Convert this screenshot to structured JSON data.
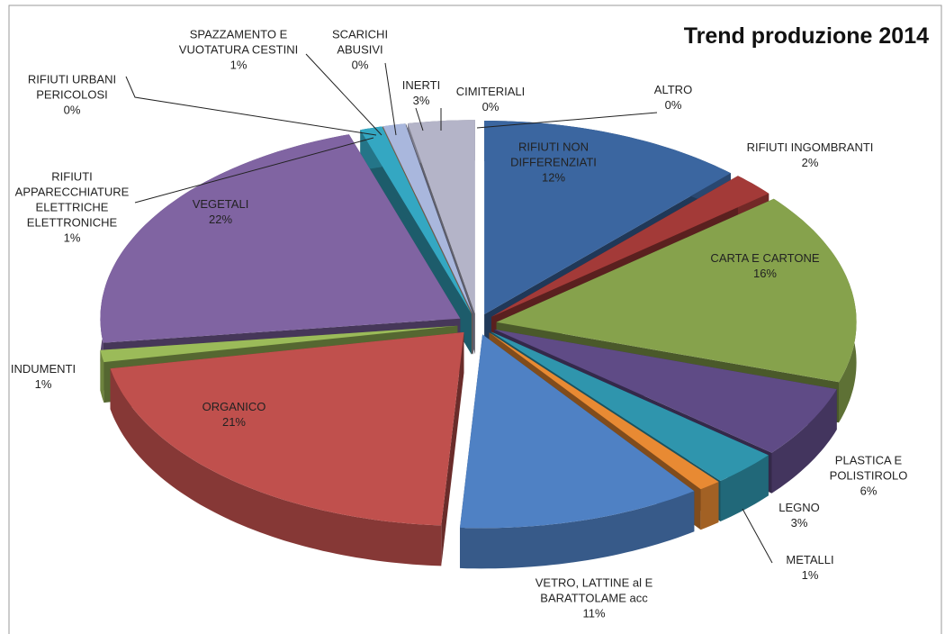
{
  "chart_data": {
    "type": "pie",
    "title": "Trend produzione 2014",
    "categories": [
      "RIFIUTI NON\nDIFFERENZIATI",
      "RIFIUTI INGOMBRANTI",
      "CARTA E CARTONE",
      "PLASTICA E\nPOLISTIROLO",
      "LEGNO",
      "METALLI",
      "VETRO, LATTINE al E\nBARATTOLAME acc",
      "ORGANICO",
      "INDUMENTI",
      "VEGETALI",
      "RIFIUTI\nAPPARECCHIATURE\nELETTRICHE\nELETTRONICHE",
      "RIFIUTI URBANI\nPERICOLOSI",
      "SPAZZAMENTO E\nVUOTATURA CESTINI",
      "SCARICHI\nABUSIVI",
      "INERTI",
      "CIMITERIALI",
      "ALTRO"
    ],
    "values": [
      12,
      2,
      16,
      6,
      3,
      1,
      11,
      21,
      1,
      22,
      1,
      0,
      1,
      0,
      3,
      0,
      0
    ],
    "value_labels": [
      "12%",
      "2%",
      "16%",
      "6%",
      "3%",
      "1%",
      "11%",
      "21%",
      "1%",
      "22%",
      "1%",
      "0%",
      "1%",
      "0%",
      "3%",
      "0%",
      "0%"
    ],
    "colors": [
      "#3b66a0",
      "#a33a38",
      "#86a24c",
      "#5f4b86",
      "#2f95ad",
      "#e88a33",
      "#4f81c4",
      "#c0504d",
      "#9bbb59",
      "#8064a2",
      "#34a7c2",
      "#f79646",
      "#a9b7dd",
      "#8c8fb5",
      "#b4b4c8",
      "#c4d79b",
      "#dddddd"
    ]
  }
}
